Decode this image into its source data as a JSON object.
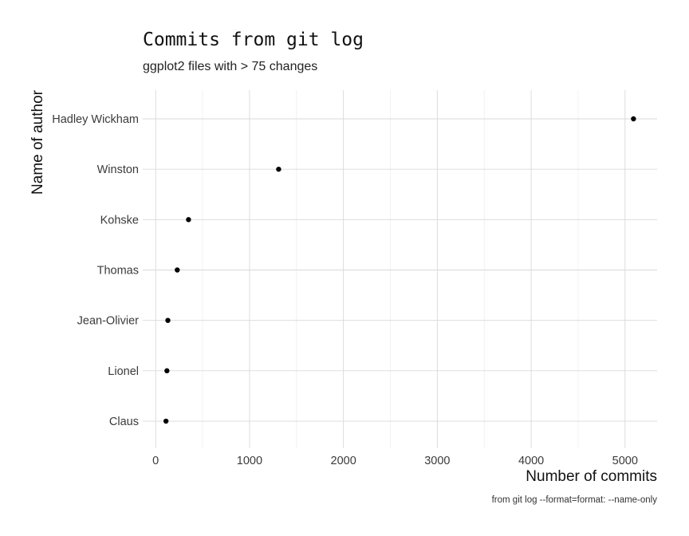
{
  "chart_data": {
    "type": "scatter",
    "title": "Commits from git log",
    "subtitle": "ggplot2 files with > 75 changes",
    "caption": "from git log --format=format: --name-only",
    "xlabel": "Number of commits",
    "ylabel": "Name of author",
    "xlim": [
      0,
      5300
    ],
    "x_ticks": [
      0,
      1000,
      2000,
      3000,
      4000,
      5000
    ],
    "categories": [
      "Hadley Wickham",
      "Winston",
      "Kohske",
      "Thomas",
      "Jean-Olivier",
      "Lionel",
      "Claus"
    ],
    "values": [
      5090,
      1310,
      350,
      230,
      130,
      120,
      110
    ],
    "grid": true,
    "legend": "none"
  }
}
